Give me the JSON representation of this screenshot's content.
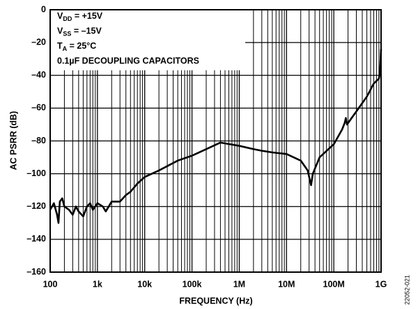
{
  "chart_data": {
    "type": "line",
    "xlabel": "FREQUENCY (Hz)",
    "ylabel": "AC PSRR (dB)",
    "annotations": [
      {
        "text": "V",
        "sub": "DD",
        "rest": " = +15V"
      },
      {
        "text": "V",
        "sub": "SS",
        "rest": " = –15V"
      },
      {
        "text": "T",
        "sub": "A",
        "rest": " = 25°C"
      },
      {
        "text": "0.1µF DECOUPLING CAPACITORS"
      }
    ],
    "figure_id": "22052-021",
    "xlog": true,
    "xlim": [
      100,
      1000000000
    ],
    "xticks": [
      100,
      {
        "value": 1000,
        "label": "1k"
      },
      {
        "value": 10000,
        "label": "10k"
      },
      {
        "value": 100000,
        "label": "100k"
      },
      {
        "value": 1000000,
        "label": "1M"
      },
      {
        "value": 10000000,
        "label": "10M"
      },
      {
        "value": 100000000,
        "label": "100M"
      },
      {
        "value": 1000000000,
        "label": "1G"
      }
    ],
    "ylim": [
      -160,
      0
    ],
    "yticks": [
      0,
      {
        "value": -20,
        "label": "–20"
      },
      {
        "value": -40,
        "label": "–40"
      },
      {
        "value": -60,
        "label": "–60"
      },
      {
        "value": -80,
        "label": "–80"
      },
      {
        "value": -100,
        "label": "–100"
      },
      {
        "value": -120,
        "label": "–120"
      },
      {
        "value": -140,
        "label": "–140"
      },
      {
        "value": -160,
        "label": "–160"
      }
    ],
    "grid": true,
    "minor_grid": true,
    "x": [
      100,
      120,
      140,
      150,
      160,
      180,
      200,
      250,
      300,
      350,
      400,
      500,
      600,
      700,
      800,
      1000,
      1300,
      1500,
      2000,
      3000,
      4000,
      5000,
      7000,
      10000,
      20000,
      50000,
      100000,
      200000,
      400000,
      1000000,
      2000000,
      3000000,
      5000000,
      10000000,
      20000000,
      28000000,
      33000000,
      36000000,
      50000000,
      100000000,
      150000000,
      170000000,
      180000000,
      190000000,
      300000000,
      500000000,
      700000000,
      900000000,
      950000000,
      1000000000
    ],
    "series": [
      {
        "color": "#000000",
        "values": [
          -122,
          -118,
          -125,
          -130,
          -117,
          -115,
          -120,
          -122,
          -125,
          -120,
          -123,
          -126,
          -120,
          -118,
          -122,
          -118,
          -120,
          -123,
          -117,
          -117,
          -113,
          -111,
          -106,
          -102,
          -98,
          -92,
          -89,
          -85,
          -81,
          -83,
          -85,
          -86,
          -87,
          -88,
          -92,
          -98,
          -107,
          -100,
          -90,
          -82,
          -73,
          -69,
          -66,
          -70,
          -62,
          -53,
          -45,
          -42,
          -38,
          -24
        ]
      }
    ]
  }
}
